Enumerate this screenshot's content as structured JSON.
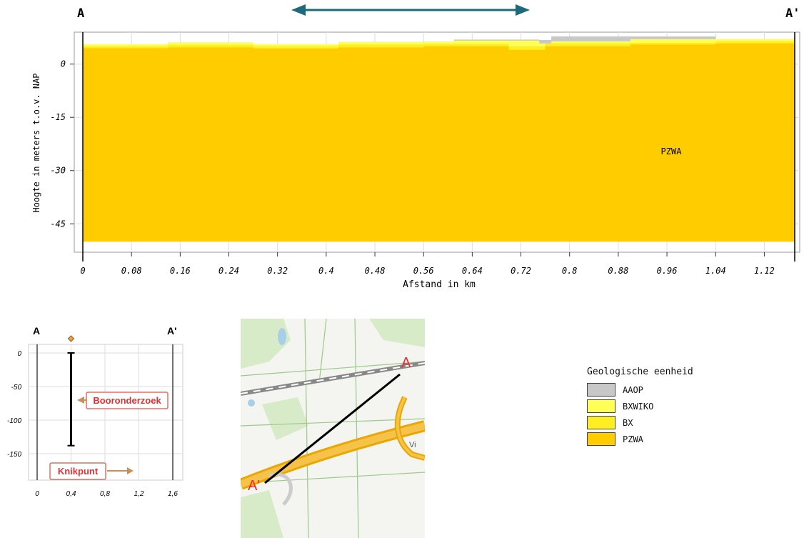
{
  "section": {
    "start_label": "A",
    "end_label": "A'",
    "unit_label": "PZWA"
  },
  "chart_data": {
    "type": "area",
    "xlabel": "Afstand in km",
    "ylabel": "Hoogte in meters t.o.v. NAP",
    "xlim": [
      0,
      1.17
    ],
    "ylim": [
      -53,
      9
    ],
    "x_ticks": [
      "0",
      "0.08",
      "0.16",
      "0.24",
      "0.32",
      "0.4",
      "0.48",
      "0.56",
      "0.64",
      "0.72",
      "0.8",
      "0.88",
      "0.96",
      "1.04",
      "1.12"
    ],
    "x_tick_values": [
      0,
      0.08,
      0.16,
      0.24,
      0.32,
      0.4,
      0.48,
      0.56,
      0.64,
      0.72,
      0.8,
      0.88,
      0.96,
      1.04,
      1.12
    ],
    "y_ticks": [
      "0",
      "-15",
      "-30",
      "-45"
    ],
    "y_tick_values": [
      0,
      -15,
      -30,
      -45
    ],
    "base": -50,
    "grid": true,
    "layers": [
      {
        "name": "PZWA",
        "color": "#FFCC00",
        "top": [
          [
            0,
            4.5
          ],
          [
            0.14,
            4.5
          ],
          [
            0.14,
            4.7
          ],
          [
            0.28,
            4.7
          ],
          [
            0.28,
            4.4
          ],
          [
            0.42,
            4.4
          ],
          [
            0.42,
            4.7
          ],
          [
            0.56,
            4.7
          ],
          [
            0.56,
            5.0
          ],
          [
            0.7,
            5.0
          ],
          [
            0.7,
            4.0
          ],
          [
            0.76,
            4.0
          ],
          [
            0.76,
            5.0
          ],
          [
            0.9,
            5.0
          ],
          [
            0.9,
            5.5
          ],
          [
            1.04,
            5.5
          ],
          [
            1.04,
            5.8
          ],
          [
            1.17,
            5.8
          ]
        ]
      },
      {
        "name": "BX",
        "color": "#FFEE22",
        "top": [
          [
            0,
            5.0
          ],
          [
            0.14,
            5.0
          ],
          [
            0.14,
            5.4
          ],
          [
            0.28,
            5.4
          ],
          [
            0.28,
            5.0
          ],
          [
            0.42,
            5.0
          ],
          [
            0.42,
            5.5
          ],
          [
            0.56,
            5.5
          ],
          [
            0.56,
            5.7
          ],
          [
            0.7,
            5.7
          ],
          [
            0.7,
            5.0
          ],
          [
            0.76,
            5.0
          ],
          [
            0.76,
            5.8
          ],
          [
            0.9,
            5.8
          ],
          [
            0.9,
            6.0
          ],
          [
            1.04,
            6.0
          ],
          [
            1.04,
            6.4
          ],
          [
            1.17,
            6.4
          ]
        ]
      },
      {
        "name": "BXWIKO",
        "color": "#FFFF55",
        "top": [
          [
            0,
            5.6
          ],
          [
            0.14,
            5.6
          ],
          [
            0.14,
            6.1
          ],
          [
            0.28,
            6.1
          ],
          [
            0.28,
            5.6
          ],
          [
            0.42,
            5.6
          ],
          [
            0.42,
            6.2
          ],
          [
            0.56,
            6.2
          ],
          [
            0.56,
            6.3
          ],
          [
            0.61,
            6.3
          ],
          [
            0.61,
            6.6
          ],
          [
            0.75,
            6.6
          ],
          [
            0.75,
            5.8
          ],
          [
            0.77,
            5.8
          ],
          [
            0.77,
            6.4
          ],
          [
            0.9,
            6.4
          ],
          [
            0.9,
            7.0
          ],
          [
            1.04,
            7.0
          ],
          [
            1.04,
            7.0
          ],
          [
            1.17,
            7.0
          ]
        ]
      },
      {
        "name": "AAOP",
        "color": "#C8C8C8",
        "top": [
          [
            0,
            5.6
          ],
          [
            0.14,
            5.6
          ],
          [
            0.14,
            6.1
          ],
          [
            0.28,
            6.1
          ],
          [
            0.28,
            5.6
          ],
          [
            0.42,
            5.6
          ],
          [
            0.42,
            6.2
          ],
          [
            0.56,
            6.2
          ],
          [
            0.56,
            6.3
          ],
          [
            0.61,
            6.3
          ],
          [
            0.61,
            6.9
          ],
          [
            0.75,
            6.9
          ],
          [
            0.75,
            6.8
          ],
          [
            0.77,
            6.8
          ],
          [
            0.77,
            7.8
          ],
          [
            0.9,
            7.8
          ],
          [
            0.9,
            7.8
          ],
          [
            1.04,
            7.8
          ],
          [
            1.04,
            7.0
          ],
          [
            1.17,
            7.0
          ]
        ]
      }
    ]
  },
  "legend": {
    "title": "Geologische eenheid",
    "items": [
      {
        "label": "AAOP",
        "color": "#C8C8C8"
      },
      {
        "label": "BXWIKO",
        "color": "#FFFF55"
      },
      {
        "label": "BX",
        "color": "#FFEE22"
      },
      {
        "label": "PZWA",
        "color": "#FFCC00"
      }
    ]
  },
  "mini_chart": {
    "start_label": "A",
    "end_label": "A'",
    "x_ticks": [
      "0",
      "0,4",
      "0,8",
      "1,2",
      "1,6"
    ],
    "x_tick_values": [
      0,
      0.4,
      0.8,
      1.2,
      1.6
    ],
    "y_ticks": [
      "0",
      "-50",
      "-100",
      "-150"
    ],
    "y_tick_values": [
      0,
      -50,
      -100,
      -150
    ],
    "boring_x": 0.4,
    "boring_depth": -138,
    "callout_boring": "Booronderzoek",
    "callout_knikpunt": "Knikpunt",
    "callout_color": "#E03030"
  },
  "map": {
    "label_a": "A",
    "label_a_prime": "A'",
    "label_color": "#E03030",
    "partial_text": "Vi"
  },
  "colors": {
    "arrow": "#1E6A7A"
  }
}
